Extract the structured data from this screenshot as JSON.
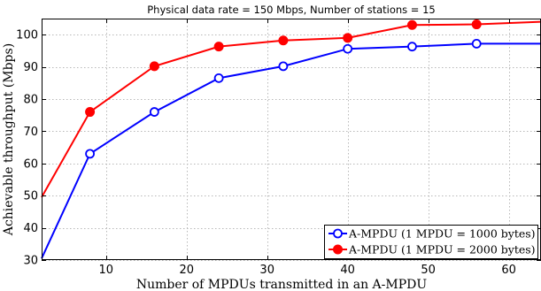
{
  "chart_data": {
    "type": "line",
    "title": "Physical data rate = 150 Mbps, Number of stations = 15",
    "xlabel": "Number of MPDUs transmitted in an A-MPDU",
    "ylabel": "Achievable throughput (Mbps)",
    "xlim": [
      2,
      64
    ],
    "ylim": [
      30,
      105
    ],
    "x_ticks": [
      10,
      20,
      30,
      40,
      50,
      60
    ],
    "y_ticks": [
      30,
      40,
      50,
      60,
      70,
      80,
      90,
      100
    ],
    "grid": true,
    "legend_position": "bottom-right",
    "series": [
      {
        "name": "A-MPDU (1 MPDU = 1000 bytes)",
        "color": "#0000ff",
        "marker": "open-circle",
        "x": [
          2,
          8,
          16,
          24,
          32,
          40,
          48,
          56,
          64
        ],
        "y": [
          30.5,
          63,
          76,
          86.5,
          90.2,
          95.6,
          96.3,
          97.2,
          97.2
        ]
      },
      {
        "name": "A-MPDU (1 MPDU = 2000 bytes)",
        "color": "#ff0000",
        "marker": "filled-circle",
        "x": [
          2,
          8,
          16,
          24,
          32,
          40,
          48,
          56,
          64
        ],
        "y": [
          49.5,
          76,
          90.2,
          96.3,
          98.2,
          99,
          103,
          103.2,
          104
        ]
      }
    ]
  }
}
